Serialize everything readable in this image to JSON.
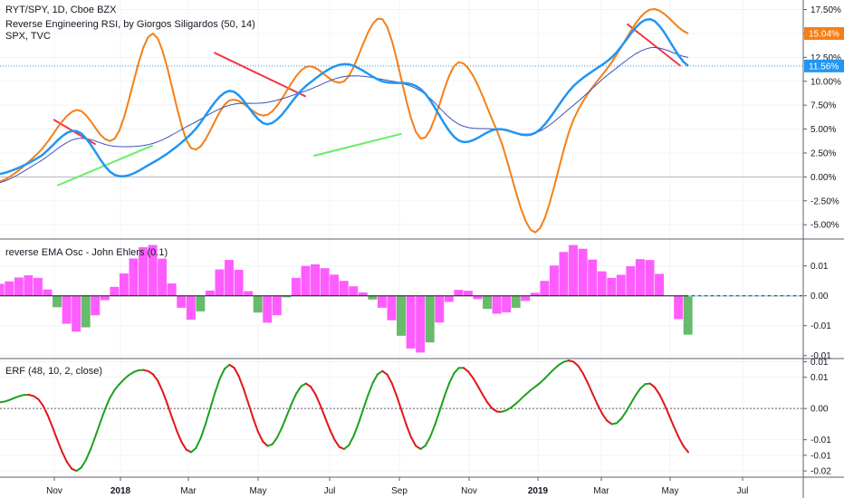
{
  "header": {
    "title": "RYT/SPY, 1D, Cboe BZX",
    "indicator": "Reverse Engineering RSI, by Giorgos Siligardos (50, 14)",
    "compare": "SPX, TVC"
  },
  "x_axis": {
    "labels": [
      "Nov",
      "2018",
      "Mar",
      "May",
      "Jul",
      "Sep",
      "Nov",
      "2019",
      "Mar",
      "May",
      "Jul"
    ],
    "bold": [
      "2018",
      "2019"
    ]
  },
  "colors": {
    "price": "#2196f3",
    "spx": "#f57f17",
    "ma": "#3f51b5",
    "trend_down": "#f23645",
    "trend_up": "#66ee66",
    "osc_pos": "#ff40ff",
    "osc_neg": "#4caf50",
    "erf_up": "#1ea01e",
    "erf_down": "#e0161a",
    "zero_line": "#80deea"
  },
  "chart_data": [
    {
      "type": "line",
      "title": "RYT/SPY, 1D, Cboe BZX",
      "y_ticks": [
        "17.50%",
        "15.00%",
        "12.50%",
        "10.00%",
        "7.50%",
        "5.00%",
        "2.50%",
        "0.00%",
        "-2.50%",
        "-5.00%"
      ],
      "ylim": [
        -6.5,
        18.5
      ],
      "x": [
        0,
        10,
        20,
        30,
        40,
        50,
        60,
        70,
        80,
        90,
        100,
        110,
        120,
        130,
        140,
        150,
        160,
        170,
        180
      ],
      "series": [
        {
          "name": "RYT/SPY",
          "values": [
            0.3,
            2.0,
            4.8,
            0.2,
            1.5,
            4.5,
            9.0,
            5.5,
            9.5,
            11.8,
            10.0,
            9.2,
            3.8,
            5.0,
            4.6,
            9.5,
            12.5,
            16.5,
            11.6
          ],
          "last_label": "11.56%"
        },
        {
          "name": "SPX",
          "values": [
            -0.5,
            2.5,
            7.0,
            4.0,
            15.0,
            3.0,
            8.0,
            6.5,
            11.5,
            10.0,
            16.5,
            4.0,
            12.0,
            4.8,
            -5.8,
            6.0,
            12.0,
            17.5,
            15.0
          ],
          "last_label": "15.04%"
        },
        {
          "name": "MA",
          "values": [
            -0.6,
            1.5,
            4.0,
            3.2,
            3.5,
            5.5,
            7.5,
            7.8,
            9.0,
            10.5,
            10.2,
            9.0,
            5.5,
            5.0,
            4.6,
            7.5,
            11.0,
            13.5,
            12.5
          ]
        }
      ],
      "trendlines": [
        {
          "color": "down",
          "x": [
            14,
            25
          ],
          "values": [
            6.0,
            3.4
          ]
        },
        {
          "color": "up",
          "x": [
            15,
            40
          ],
          "values": [
            -0.9,
            3.3
          ]
        },
        {
          "color": "down",
          "x": [
            56,
            80
          ],
          "values": [
            13.0,
            8.4
          ]
        },
        {
          "color": "up",
          "x": [
            82,
            105
          ],
          "values": [
            2.2,
            4.5
          ]
        },
        {
          "color": "down",
          "x": [
            164,
            178
          ],
          "values": [
            16.0,
            11.6
          ]
        }
      ]
    },
    {
      "type": "area",
      "title": "reverse EMA Osc - John Ehlers (0.1)",
      "y_ticks": [
        "0.01",
        "0.00",
        "-0.01",
        "-0.01"
      ],
      "ylim": [
        -0.021,
        0.019
      ],
      "x": [
        0,
        10,
        20,
        30,
        40,
        50,
        60,
        70,
        80,
        90,
        100,
        110,
        120,
        130,
        140,
        150,
        160,
        170,
        180
      ],
      "values": [
        0.004,
        0.006,
        -0.012,
        0.003,
        0.017,
        -0.008,
        0.012,
        -0.009,
        0.01,
        0.005,
        -0.004,
        -0.019,
        0.002,
        -0.006,
        0.001,
        0.017,
        0.006,
        0.012,
        -0.013
      ]
    },
    {
      "type": "line",
      "title": "ERF (48, 10, 2, close)",
      "y_ticks": [
        "0.01",
        "0.01",
        "0.00",
        "-0.01",
        "-0.01",
        "-0.02"
      ],
      "ylim": [
        -0.022,
        0.016
      ],
      "x": [
        0,
        10,
        20,
        30,
        40,
        50,
        60,
        70,
        80,
        90,
        100,
        110,
        120,
        130,
        140,
        150,
        160,
        170,
        180
      ],
      "values": [
        0.002,
        0.003,
        -0.02,
        0.006,
        0.011,
        -0.014,
        0.014,
        -0.012,
        0.008,
        -0.013,
        0.012,
        -0.013,
        0.013,
        -0.001,
        0.007,
        0.015,
        -0.005,
        0.008,
        -0.014
      ]
    }
  ]
}
